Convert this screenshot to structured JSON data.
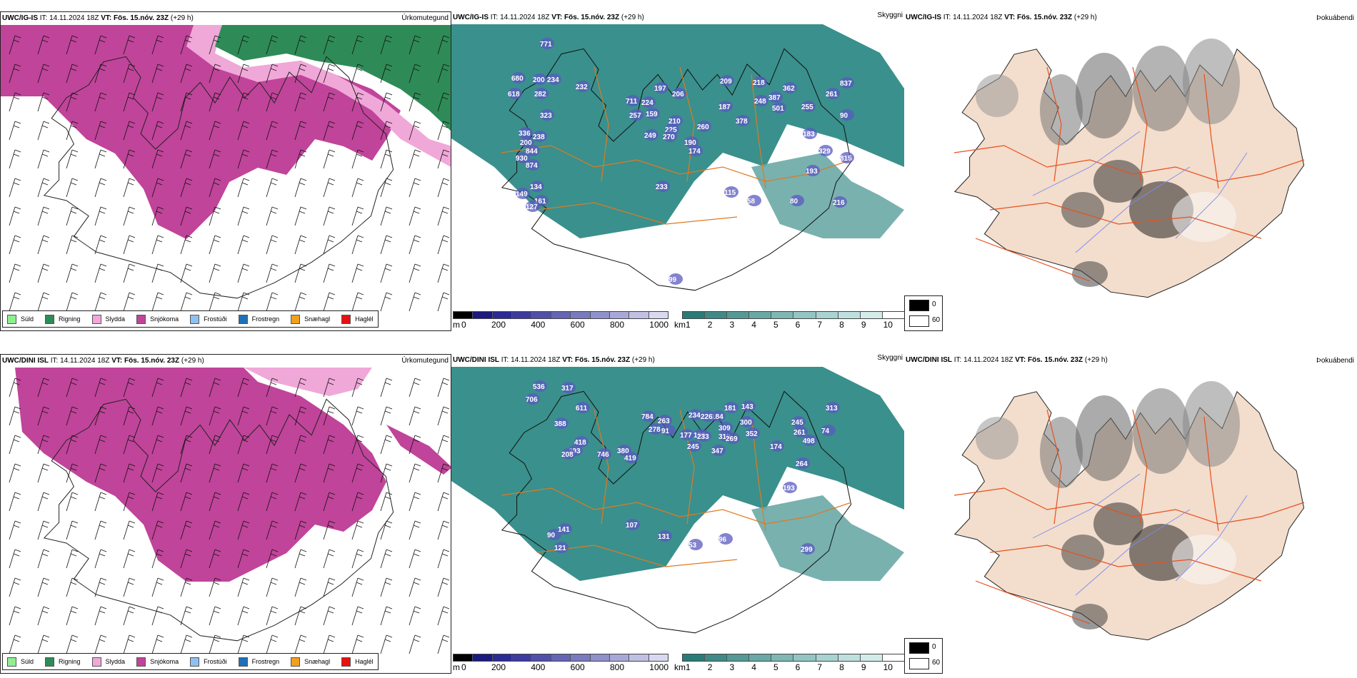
{
  "rows": [
    {
      "model": "UWC/IG-IS",
      "it_label": "IT:",
      "it_value": "14.11.2024 18Z",
      "vt_label": "VT: Fös. 15.nóv. 23Z",
      "lead": "(+29 h)",
      "panels": {
        "precip_type": {
          "title": "Úrkomutegund"
        },
        "cloud": {
          "title": "Skyggni",
          "labels": [
            "771",
            "680",
            "200",
            "234",
            "618",
            "282",
            "232",
            "323",
            "336",
            "200",
            "238",
            "930",
            "844",
            "874",
            "149",
            "134",
            "161",
            "127",
            "233",
            "711",
            "224",
            "257",
            "197",
            "206",
            "159",
            "210",
            "225",
            "249",
            "270",
            "190",
            "174",
            "260",
            "209",
            "187",
            "218",
            "248",
            "387",
            "501",
            "378",
            "362",
            "255",
            "183",
            "329",
            "193",
            "261",
            "837",
            "90",
            "115",
            "58",
            "80",
            "216",
            "815",
            "99"
          ]
        },
        "fog": {
          "title": "Þokuábendi"
        }
      }
    },
    {
      "model": "UWC/DINI ISL",
      "it_label": "IT:",
      "it_value": "14.11.2024 18Z",
      "vt_label": "VT: Fös. 15.nóv. 23Z",
      "lead": "(+29 h)",
      "panels": {
        "precip_type": {
          "title": "Úrkomutegund"
        },
        "cloud": {
          "title": "Skyggni",
          "labels": [
            "536",
            "317",
            "706",
            "611",
            "388",
            "784",
            "263",
            "278",
            "91",
            "177",
            "190",
            "234",
            "184",
            "226",
            "233",
            "245",
            "347",
            "309",
            "310",
            "269",
            "181",
            "143",
            "300",
            "352",
            "245",
            "261",
            "313",
            "74",
            "498",
            "174",
            "264",
            "193",
            "418",
            "293",
            "208",
            "746",
            "380",
            "419",
            "90",
            "141",
            "121",
            "107",
            "131",
            "53",
            "96",
            "299"
          ]
        },
        "fog": {
          "title": "Þokuábendi"
        }
      }
    }
  ],
  "precip_legend": [
    {
      "label": "Súld",
      "color": "#90ee90"
    },
    {
      "label": "Rigning",
      "color": "#2e8b57"
    },
    {
      "label": "Slydda",
      "color": "#f0a8d8"
    },
    {
      "label": "Snjókoma",
      "color": "#c0449a"
    },
    {
      "label": "Frostúði",
      "color": "#90c0f0"
    },
    {
      "label": "Frostregn",
      "color": "#2070b8"
    },
    {
      "label": "Snæhagl",
      "color": "#f0a020"
    },
    {
      "label": "Haglél",
      "color": "#e81010"
    }
  ],
  "ceiling_scale": {
    "unit": "m",
    "ticks": [
      "0",
      "200",
      "400",
      "600",
      "800",
      "1000"
    ],
    "colors": [
      "#000000",
      "#1a1a80",
      "#2b2b95",
      "#3b3ba0",
      "#5050aa",
      "#6565b5",
      "#7a7ac0",
      "#9090cc",
      "#a8a8d8",
      "#c0c0e4",
      "#d8d8f0"
    ]
  },
  "visibility_scale": {
    "unit": "km",
    "ticks": [
      "1",
      "2",
      "3",
      "4",
      "5",
      "6",
      "7",
      "8",
      "9",
      "10"
    ],
    "colors": [
      "#2a7b78",
      "#3f8a87",
      "#549996",
      "#69a8a5",
      "#7eb7b4",
      "#93c6c3",
      "#a8d3d1",
      "#bde0de",
      "#d3ecea",
      "#ffffff"
    ]
  },
  "fog_scale": {
    "min": "0",
    "max": "60",
    "min_color": "#000000",
    "max_color": "#ffffff"
  },
  "colors": {
    "land": "#f3ddcc",
    "roads": "#e8501e",
    "rivers": "#7a8cf0",
    "sea_teal": "#2f8a86",
    "snow": "#c0449a",
    "sleet": "#f0a8d8",
    "rain": "#2e8b57"
  }
}
